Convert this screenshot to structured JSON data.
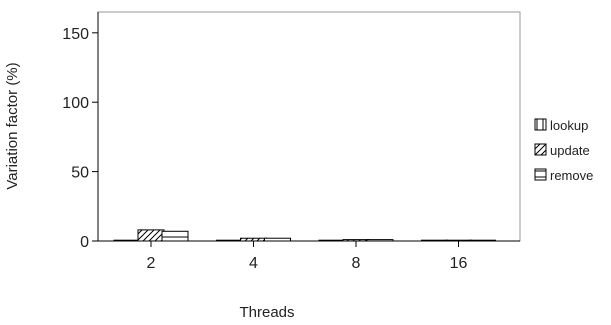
{
  "chart_data": {
    "type": "bar",
    "xlabel": "Threads",
    "ylabel": "Variation factor (%)",
    "categories": [
      "2",
      "4",
      "8",
      "16"
    ],
    "ylim": [
      0,
      165
    ],
    "yticks": [
      0,
      50,
      100,
      150
    ],
    "grid": false,
    "legend_position": "right",
    "series": [
      {
        "name": "lookup",
        "pattern": "vertical",
        "values": [
          0.5,
          0.2,
          0.1,
          0.1
        ]
      },
      {
        "name": "update",
        "pattern": "diagonal",
        "values": [
          8,
          2,
          1,
          0.5
        ]
      },
      {
        "name": "remove",
        "pattern": "horizontal",
        "values": [
          7,
          2,
          1,
          0.5
        ]
      }
    ]
  }
}
